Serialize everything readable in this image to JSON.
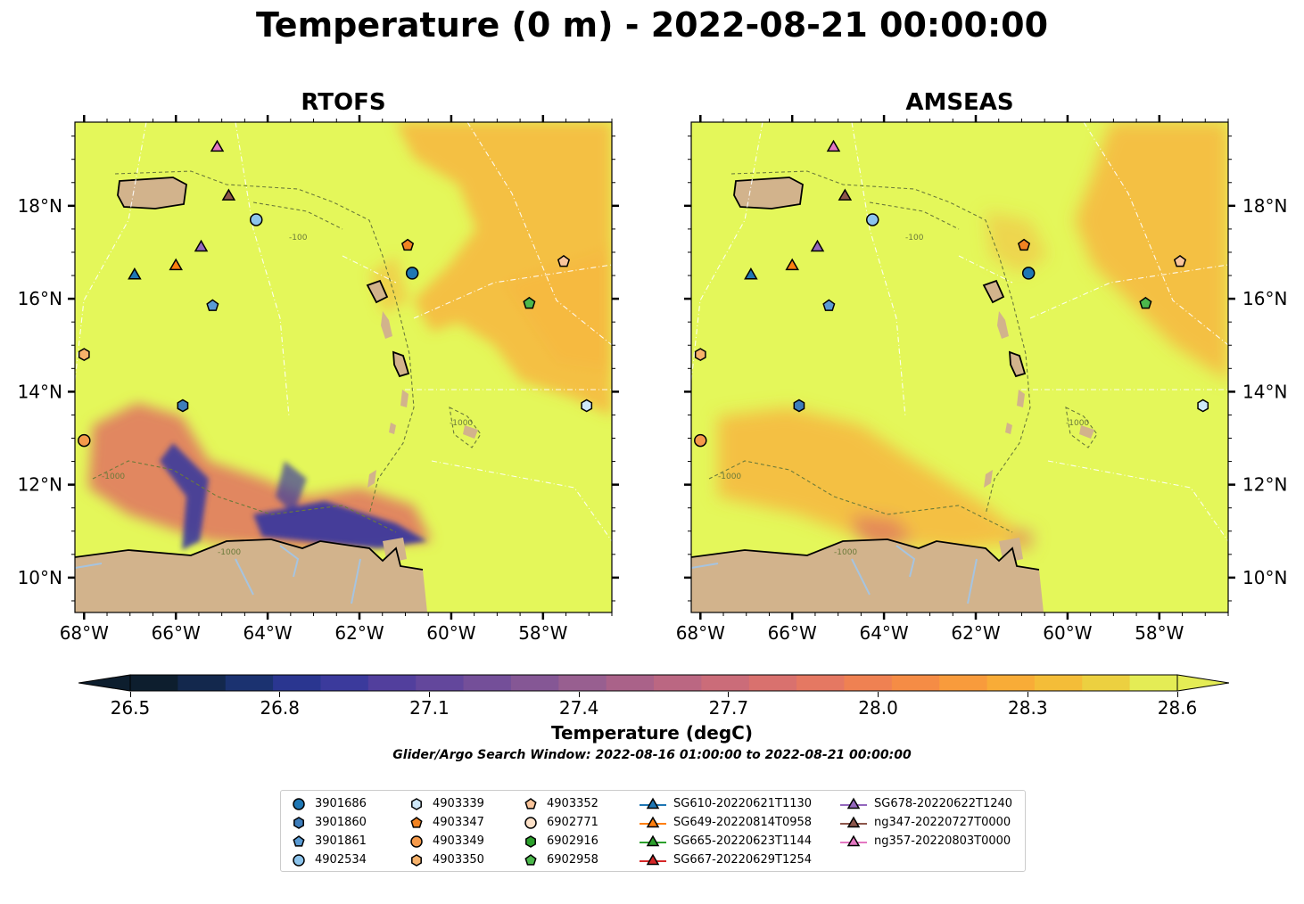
{
  "title": "Temperature (0 m) - 2022-08-21 00:00:00",
  "panels": [
    {
      "title": "RTOFS",
      "lat_labels_side": "left"
    },
    {
      "title": "AMSEAS",
      "lat_labels_side": "right"
    }
  ],
  "map_extent": {
    "lon": [
      -68.2,
      -56.5
    ],
    "lat": [
      9.25,
      19.8
    ]
  },
  "lon_labels": [
    "68°W",
    "66°W",
    "64°W",
    "62°W",
    "60°W",
    "58°W"
  ],
  "lat_labels": [
    "18°N",
    "16°N",
    "14°N",
    "12°N",
    "10°N"
  ],
  "contour_labels": [
    "-100",
    "-1000",
    "-1000",
    "-1000"
  ],
  "colorbar": {
    "label": "Temperature (degC)",
    "ticks": [
      "26.5",
      "26.8",
      "27.1",
      "27.4",
      "27.7",
      "28.0",
      "28.3",
      "28.6"
    ],
    "range": [
      26.5,
      28.6
    ],
    "extend": "both",
    "colormap": [
      "#0d1e2e",
      "#13284d",
      "#1b3270",
      "#2a3690",
      "#3b3a9c",
      "#523f9d",
      "#63479c",
      "#744f99",
      "#855795",
      "#985f90",
      "#aa6289",
      "#bb6782",
      "#cb6c79",
      "#d9716e",
      "#e57862",
      "#ef8152",
      "#f58c45",
      "#f89b3c",
      "#f8ac37",
      "#f4bd38",
      "#ecd040",
      "#e4ec55"
    ]
  },
  "colors": {
    "sea_default": "#e4f75a",
    "land": "#d2b38c",
    "rivers": "#a6c4e0",
    "warm_patch": "#f7b640",
    "cool_patch": "#e07a5f"
  },
  "search_window": "Glider/Argo Search Window: 2022-08-16 01:00:00 to 2022-08-21 00:00:00",
  "legend": [
    {
      "label": "3901686",
      "marker": "circle",
      "color": "#1f77b4"
    },
    {
      "label": "3901860",
      "marker": "hexagon",
      "color": "#3d7dbb"
    },
    {
      "label": "3901861",
      "marker": "pentagon",
      "color": "#5a9bd4"
    },
    {
      "label": "4902534",
      "marker": "circle",
      "color": "#8cc4ec"
    },
    {
      "label": "4903339",
      "marker": "hexagon",
      "color": "#cfe8f8"
    },
    {
      "label": "4903347",
      "marker": "pentagon",
      "color": "#f28322"
    },
    {
      "label": "4903349",
      "marker": "circle",
      "color": "#f59a4b"
    },
    {
      "label": "4903350",
      "marker": "hexagon",
      "color": "#f7b26b"
    },
    {
      "label": "4903352",
      "marker": "pentagon",
      "color": "#fbc59b"
    },
    {
      "label": "6902771",
      "marker": "circle",
      "color": "#fde1c8"
    },
    {
      "label": "6902916",
      "marker": "hexagon",
      "color": "#2ca02c"
    },
    {
      "label": "6902958",
      "marker": "pentagon",
      "color": "#4cb84c"
    },
    {
      "label": "SG610-20220621T1130",
      "marker": "triangle-line",
      "color": "#1f77b4"
    },
    {
      "label": "SG649-20220814T0958",
      "marker": "triangle-line",
      "color": "#ff7f0e"
    },
    {
      "label": "SG665-20220623T1144",
      "marker": "triangle-line",
      "color": "#2ca02c"
    },
    {
      "label": "SG667-20220629T1254",
      "marker": "triangle-line",
      "color": "#d62728"
    },
    {
      "label": "SG678-20220622T1240",
      "marker": "triangle-line",
      "color": "#9467bd"
    },
    {
      "label": "ng347-20220727T0000",
      "marker": "triangle-line",
      "color": "#8c564b"
    },
    {
      "label": "ng357-20220803T0000",
      "marker": "triangle-line",
      "color": "#e377c2"
    }
  ],
  "platforms": [
    {
      "id": "3901686",
      "lon": -60.85,
      "lat": 16.55,
      "marker": "circle",
      "color": "#1f77b4"
    },
    {
      "id": "3901860",
      "lon": -65.85,
      "lat": 13.7,
      "marker": "hexagon",
      "color": "#3d7dbb"
    },
    {
      "id": "3901861",
      "lon": -65.2,
      "lat": 15.85,
      "marker": "pentagon",
      "color": "#5a9bd4"
    },
    {
      "id": "4902534",
      "lon": -64.25,
      "lat": 17.7,
      "marker": "circle",
      "color": "#8cc4ec"
    },
    {
      "id": "4903339",
      "lon": -57.05,
      "lat": 13.7,
      "marker": "hexagon",
      "color": "#cfe8f8"
    },
    {
      "id": "4903347",
      "lon": -60.95,
      "lat": 17.15,
      "marker": "pentagon",
      "color": "#f28322"
    },
    {
      "id": "4903349",
      "lon": -68.0,
      "lat": 12.95,
      "marker": "circle",
      "color": "#f59a4b"
    },
    {
      "id": "4903350",
      "lon": -68.0,
      "lat": 14.8,
      "marker": "hexagon",
      "color": "#f7b26b"
    },
    {
      "id": "4903352",
      "lon": -57.55,
      "lat": 16.8,
      "marker": "pentagon",
      "color": "#fbc59b"
    },
    {
      "id": "6902958",
      "lon": -58.3,
      "lat": 15.9,
      "marker": "pentagon",
      "color": "#4cb84c"
    },
    {
      "id": "SG610-20220621T1130",
      "lon": -66.9,
      "lat": 16.5,
      "marker": "triangle",
      "color": "#1f77b4"
    },
    {
      "id": "SG649-20220814T0958",
      "lon": -66.0,
      "lat": 16.7,
      "marker": "triangle",
      "color": "#ff7f0e"
    },
    {
      "id": "SG678-20220622T1240",
      "lon": -65.45,
      "lat": 17.1,
      "marker": "triangle",
      "color": "#9467bd"
    },
    {
      "id": "ng347-20220727T0000",
      "lon": -64.85,
      "lat": 18.2,
      "marker": "triangle",
      "color": "#8c564b"
    },
    {
      "id": "ng357-20220803T0000",
      "lon": -65.1,
      "lat": 19.25,
      "marker": "triangle",
      "color": "#e377c2"
    }
  ]
}
